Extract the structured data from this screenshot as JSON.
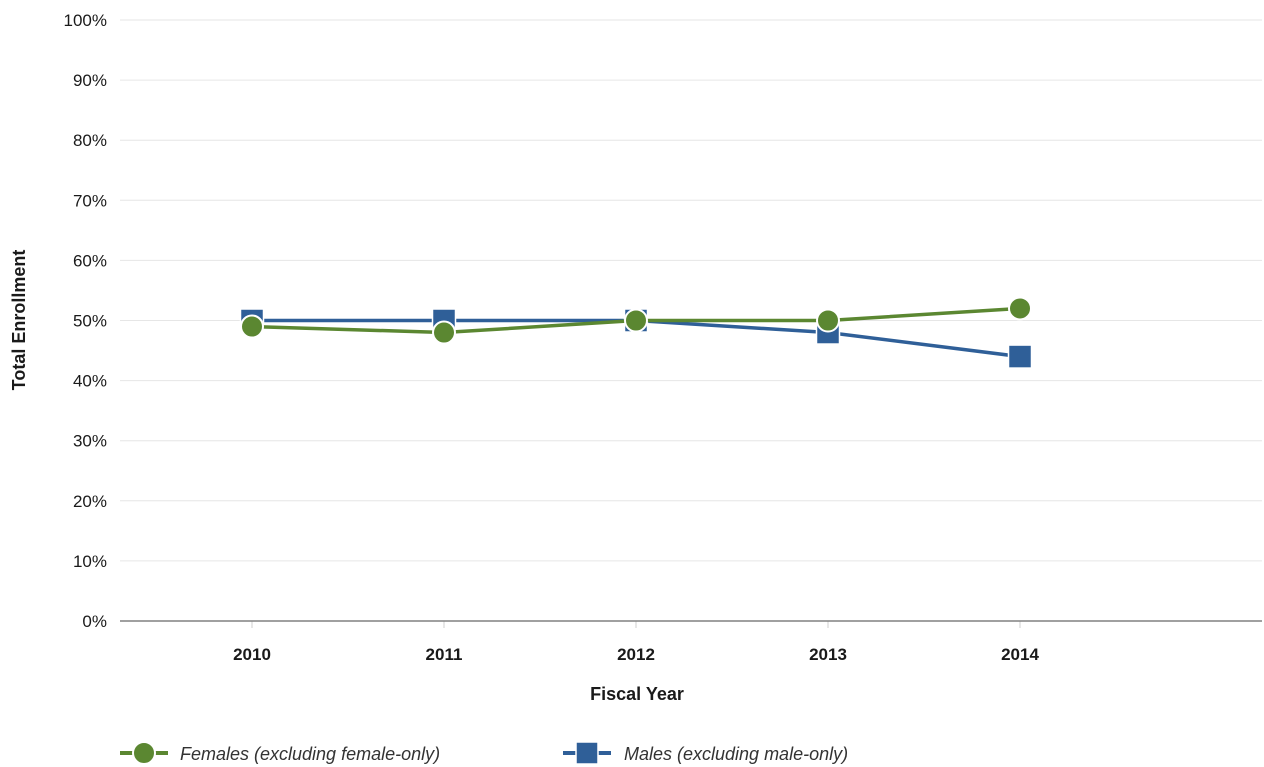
{
  "chart_data": {
    "type": "line",
    "title": "",
    "xlabel": "Fiscal Year",
    "ylabel": "Total Enrollment",
    "categories": [
      "2010",
      "2011",
      "2012",
      "2013",
      "2014"
    ],
    "y_ticks": [
      "0%",
      "10%",
      "20%",
      "30%",
      "40%",
      "50%",
      "60%",
      "70%",
      "80%",
      "90%",
      "100%"
    ],
    "ylim": [
      0,
      100
    ],
    "grid": true,
    "legend_position": "bottom-left",
    "series": [
      {
        "name": "Males (excluding male-only)",
        "marker": "square",
        "color": "#2f5f98",
        "values": [
          50,
          50,
          50,
          48,
          44
        ]
      },
      {
        "name": "Females (excluding female-only)",
        "marker": "circle",
        "color": "#5b8731",
        "values": [
          49,
          48,
          50,
          50,
          52
        ]
      }
    ]
  }
}
